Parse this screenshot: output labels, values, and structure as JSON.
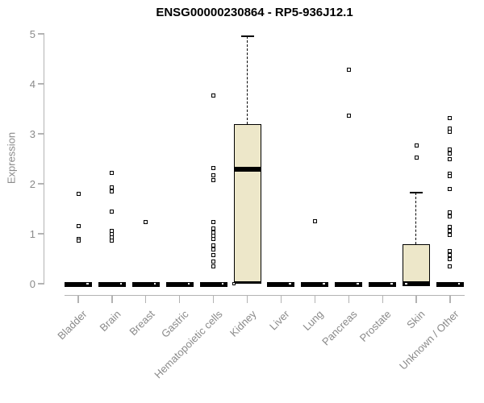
{
  "chart_data": {
    "type": "boxplot",
    "title": "ENSG00000230864 - RP5-936J12.1",
    "ylabel": "Expression",
    "ylim": [
      0,
      5
    ],
    "yticks": [
      "0",
      "1",
      "2",
      "3",
      "4",
      "5"
    ],
    "grid": false,
    "legend": false,
    "box_fill_color": "#ede7c9",
    "axis_color": "#b3b3b3",
    "label_color": "#8a8a8a",
    "categories": [
      "Bladder",
      "Brain",
      "Breast",
      "Gastric",
      "Hematopoietic cells",
      "Kidney",
      "Liver",
      "Lung",
      "Pancreas",
      "Prostate",
      "Skin",
      "Unknown / Other"
    ],
    "series": [
      {
        "category": "Bladder",
        "q1": 0,
        "median": 0,
        "q3": 0,
        "whisker_high": 0,
        "zero_notch": true,
        "outliers": [
          1.8,
          1.15,
          0.9,
          0.86
        ]
      },
      {
        "category": "Brain",
        "q1": 0,
        "median": 0,
        "q3": 0,
        "whisker_high": 0,
        "zero_notch": true,
        "outliers": [
          2.21,
          1.93,
          1.84,
          1.44,
          1.05,
          0.99,
          0.93,
          0.86
        ]
      },
      {
        "category": "Breast",
        "q1": 0,
        "median": 0,
        "q3": 0,
        "whisker_high": 0,
        "zero_notch": true,
        "outliers": [
          1.23
        ]
      },
      {
        "category": "Gastric",
        "q1": 0,
        "median": 0,
        "q3": 0,
        "whisker_high": 0,
        "zero_notch": true,
        "outliers": []
      },
      {
        "category": "Hematopoietic cells",
        "q1": 0,
        "median": 0,
        "q3": 0,
        "whisker_high": 0,
        "zero_notch": true,
        "outliers": [
          3.77,
          2.31,
          2.17,
          2.08,
          1.24,
          1.1,
          1.03,
          0.96,
          0.89,
          0.76,
          0.68,
          0.57,
          0.44,
          0.35
        ]
      },
      {
        "category": "Kidney",
        "q1": 0,
        "median": 2.29,
        "q3": 3.19,
        "whisker_high": 4.95,
        "zero_notch": true,
        "outliers": []
      },
      {
        "category": "Liver",
        "q1": 0,
        "median": 0,
        "q3": 0,
        "whisker_high": 0,
        "zero_notch": true,
        "outliers": []
      },
      {
        "category": "Lung",
        "q1": 0,
        "median": 0,
        "q3": 0,
        "whisker_high": 0,
        "zero_notch": true,
        "outliers": [
          1.25
        ]
      },
      {
        "category": "Pancreas",
        "q1": 0,
        "median": 0,
        "q3": 0,
        "whisker_high": 0,
        "zero_notch": true,
        "outliers": [
          4.28,
          3.37
        ]
      },
      {
        "category": "Prostate",
        "q1": 0,
        "median": 0,
        "q3": 0,
        "whisker_high": 0,
        "zero_notch": true,
        "outliers": []
      },
      {
        "category": "Skin",
        "q1": 0,
        "median": 0,
        "q3": 0.79,
        "whisker_high": 1.82,
        "zero_notch": true,
        "outliers": [
          2.77,
          2.52
        ]
      },
      {
        "category": "Unknown / Other",
        "q1": 0,
        "median": 0,
        "q3": 0,
        "whisker_high": 0,
        "zero_notch": true,
        "outliers": [
          3.32,
          3.11,
          3.04,
          2.68,
          2.6,
          2.5,
          2.2,
          2.16,
          1.89,
          1.43,
          1.35,
          1.13,
          1.05,
          0.97,
          0.65,
          0.57,
          0.49,
          0.35
        ]
      }
    ]
  }
}
